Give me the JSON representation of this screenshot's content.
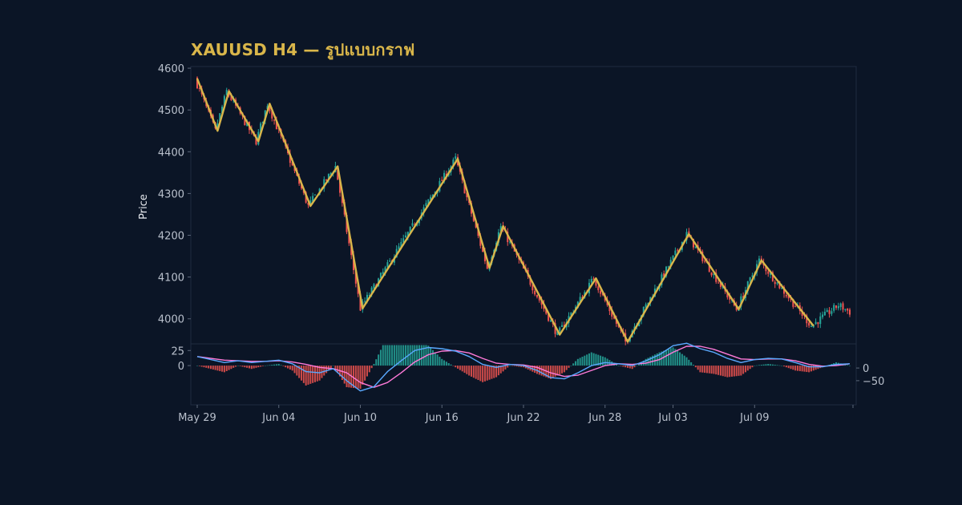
{
  "title": "XAUUSD H4 — รูปแบบกราฟ",
  "colors": {
    "background": "#0b1526",
    "up": "#26a69a",
    "down": "#ef5350",
    "zigzag": "#d9b64a",
    "macd": "#5aa9ff",
    "signal": "#ff7ad9",
    "hist_up": "#26a69a",
    "hist_down": "#ef5350",
    "title": "#d9b64a"
  },
  "chart_data": [
    {
      "type": "candlestick",
      "ylabel": "Price",
      "ylim": [
        3940,
        4604
      ],
      "yticks": [
        4000,
        4100,
        4200,
        4300,
        4400,
        4500,
        4600
      ],
      "x_tick_labels": [
        "May 29",
        "Jun 04",
        "Jun 10",
        "Jun 16",
        "Jun 22",
        "Jun 28",
        "Jul 03",
        "Jul 09"
      ],
      "x_tick_dates": [
        "2024-05-29",
        "2024-06-04",
        "2024-06-10",
        "2024-06-16",
        "2024-06-22",
        "2024-06-28",
        "2024-07-03",
        "2024-07-09"
      ],
      "date_range": [
        "2024-05-29",
        "2024-07-16"
      ],
      "timeframe_hours": 4,
      "zigzag": [
        {
          "date": "2024-05-29 00:00",
          "price": 4575
        },
        {
          "date": "2024-05-30 12:00",
          "price": 4450
        },
        {
          "date": "2024-05-31 08:00",
          "price": 4545
        },
        {
          "date": "2024-06-02 12:00",
          "price": 4425
        },
        {
          "date": "2024-06-03 08:00",
          "price": 4515
        },
        {
          "date": "2024-06-06 08:00",
          "price": 4270
        },
        {
          "date": "2024-06-08 08:00",
          "price": 4365
        },
        {
          "date": "2024-06-10 04:00",
          "price": 4025
        },
        {
          "date": "2024-06-17 04:00",
          "price": 4383
        },
        {
          "date": "2024-06-19 12:00",
          "price": 4122
        },
        {
          "date": "2024-06-20 12:00",
          "price": 4222
        },
        {
          "date": "2024-06-24 16:00",
          "price": 3962
        },
        {
          "date": "2024-06-27 08:00",
          "price": 4097
        },
        {
          "date": "2024-06-29 16:00",
          "price": 3945
        },
        {
          "date": "2024-07-04 04:00",
          "price": 4203
        },
        {
          "date": "2024-07-07 20:00",
          "price": 4023
        },
        {
          "date": "2024-07-09 12:00",
          "price": 4140
        },
        {
          "date": "2024-07-13 08:00",
          "price": 3983
        }
      ]
    },
    {
      "type": "macd",
      "ylim": [
        -65,
        36
      ],
      "left_ticks": [
        0,
        25
      ],
      "right_ticks": [
        0,
        -50
      ],
      "series": [
        {
          "role": "macd",
          "points": [
            [
              "2024-05-29 00:00",
              15
            ],
            [
              "2024-05-30 00:00",
              10
            ],
            [
              "2024-05-31 00:00",
              5
            ],
            [
              "2024-06-01 00:00",
              8
            ],
            [
              "2024-06-02 00:00",
              5
            ],
            [
              "2024-06-03 00:00",
              7
            ],
            [
              "2024-06-04 00:00",
              9
            ],
            [
              "2024-06-05 00:00",
              3
            ],
            [
              "2024-06-06 00:00",
              -10
            ],
            [
              "2024-06-07 00:00",
              -12
            ],
            [
              "2024-06-08 00:00",
              -5
            ],
            [
              "2024-06-09 00:00",
              -25
            ],
            [
              "2024-06-10 00:00",
              -42
            ],
            [
              "2024-06-11 00:00",
              -35
            ],
            [
              "2024-06-12 00:00",
              -10
            ],
            [
              "2024-06-13 00:00",
              8
            ],
            [
              "2024-06-14 00:00",
              25
            ],
            [
              "2024-06-15 00:00",
              30
            ],
            [
              "2024-06-16 00:00",
              28
            ],
            [
              "2024-06-17 00:00",
              24
            ],
            [
              "2024-06-18 00:00",
              15
            ],
            [
              "2024-06-19 00:00",
              2
            ],
            [
              "2024-06-20 00:00",
              -3
            ],
            [
              "2024-06-21 00:00",
              2
            ],
            [
              "2024-06-22 00:00",
              0
            ],
            [
              "2024-06-23 00:00",
              -8
            ],
            [
              "2024-06-24 00:00",
              -20
            ],
            [
              "2024-06-25 00:00",
              -22
            ],
            [
              "2024-06-26 00:00",
              -12
            ],
            [
              "2024-06-27 00:00",
              0
            ],
            [
              "2024-06-28 00:00",
              5
            ],
            [
              "2024-06-29 00:00",
              3
            ],
            [
              "2024-06-30 00:00",
              0
            ],
            [
              "2024-07-01 00:00",
              8
            ],
            [
              "2024-07-02 00:00",
              18
            ],
            [
              "2024-07-03 00:00",
              33
            ],
            [
              "2024-07-04 00:00",
              37
            ],
            [
              "2024-07-05 00:00",
              28
            ],
            [
              "2024-07-06 00:00",
              22
            ],
            [
              "2024-07-07 00:00",
              12
            ],
            [
              "2024-07-08 00:00",
              5
            ],
            [
              "2024-07-09 00:00",
              10
            ],
            [
              "2024-07-10 00:00",
              12
            ],
            [
              "2024-07-11 00:00",
              11
            ],
            [
              "2024-07-12 00:00",
              5
            ],
            [
              "2024-07-13 00:00",
              -2
            ],
            [
              "2024-07-14 00:00",
              -2
            ],
            [
              "2024-07-15 00:00",
              2
            ],
            [
              "2024-07-16 00:00",
              3
            ]
          ]
        },
        {
          "role": "signal",
          "points": [
            [
              "2024-05-29 00:00",
              15
            ],
            [
              "2024-05-30 00:00",
              12
            ],
            [
              "2024-05-31 00:00",
              9
            ],
            [
              "2024-06-01 00:00",
              8
            ],
            [
              "2024-06-02 00:00",
              7
            ],
            [
              "2024-06-03 00:00",
              7
            ],
            [
              "2024-06-04 00:00",
              8
            ],
            [
              "2024-06-05 00:00",
              6
            ],
            [
              "2024-06-06 00:00",
              2
            ],
            [
              "2024-06-07 00:00",
              -3
            ],
            [
              "2024-06-08 00:00",
              -5
            ],
            [
              "2024-06-09 00:00",
              -12
            ],
            [
              "2024-06-10 00:00",
              -28
            ],
            [
              "2024-06-11 00:00",
              -36
            ],
            [
              "2024-06-12 00:00",
              -28
            ],
            [
              "2024-06-13 00:00",
              -12
            ],
            [
              "2024-06-14 00:00",
              6
            ],
            [
              "2024-06-15 00:00",
              18
            ],
            [
              "2024-06-16 00:00",
              24
            ],
            [
              "2024-06-17 00:00",
              25
            ],
            [
              "2024-06-18 00:00",
              21
            ],
            [
              "2024-06-19 00:00",
              12
            ],
            [
              "2024-06-20 00:00",
              4
            ],
            [
              "2024-06-21 00:00",
              2
            ],
            [
              "2024-06-22 00:00",
              1
            ],
            [
              "2024-06-23 00:00",
              -3
            ],
            [
              "2024-06-24 00:00",
              -12
            ],
            [
              "2024-06-25 00:00",
              -18
            ],
            [
              "2024-06-26 00:00",
              -16
            ],
            [
              "2024-06-27 00:00",
              -8
            ],
            [
              "2024-06-28 00:00",
              0
            ],
            [
              "2024-06-29 00:00",
              3
            ],
            [
              "2024-06-30 00:00",
              2
            ],
            [
              "2024-07-01 00:00",
              4
            ],
            [
              "2024-07-02 00:00",
              10
            ],
            [
              "2024-07-03 00:00",
              22
            ],
            [
              "2024-07-04 00:00",
              32
            ],
            [
              "2024-07-05 00:00",
              32
            ],
            [
              "2024-07-06 00:00",
              27
            ],
            [
              "2024-07-07 00:00",
              19
            ],
            [
              "2024-07-08 00:00",
              11
            ],
            [
              "2024-07-09 00:00",
              10
            ],
            [
              "2024-07-10 00:00",
              11
            ],
            [
              "2024-07-11 00:00",
              11
            ],
            [
              "2024-07-12 00:00",
              8
            ],
            [
              "2024-07-13 00:00",
              2
            ],
            [
              "2024-07-14 00:00",
              -1
            ],
            [
              "2024-07-15 00:00",
              0
            ],
            [
              "2024-07-16 00:00",
              3
            ]
          ]
        }
      ],
      "histogram": {
        "source": "macd_minus_signal",
        "scale": 5
      }
    }
  ]
}
